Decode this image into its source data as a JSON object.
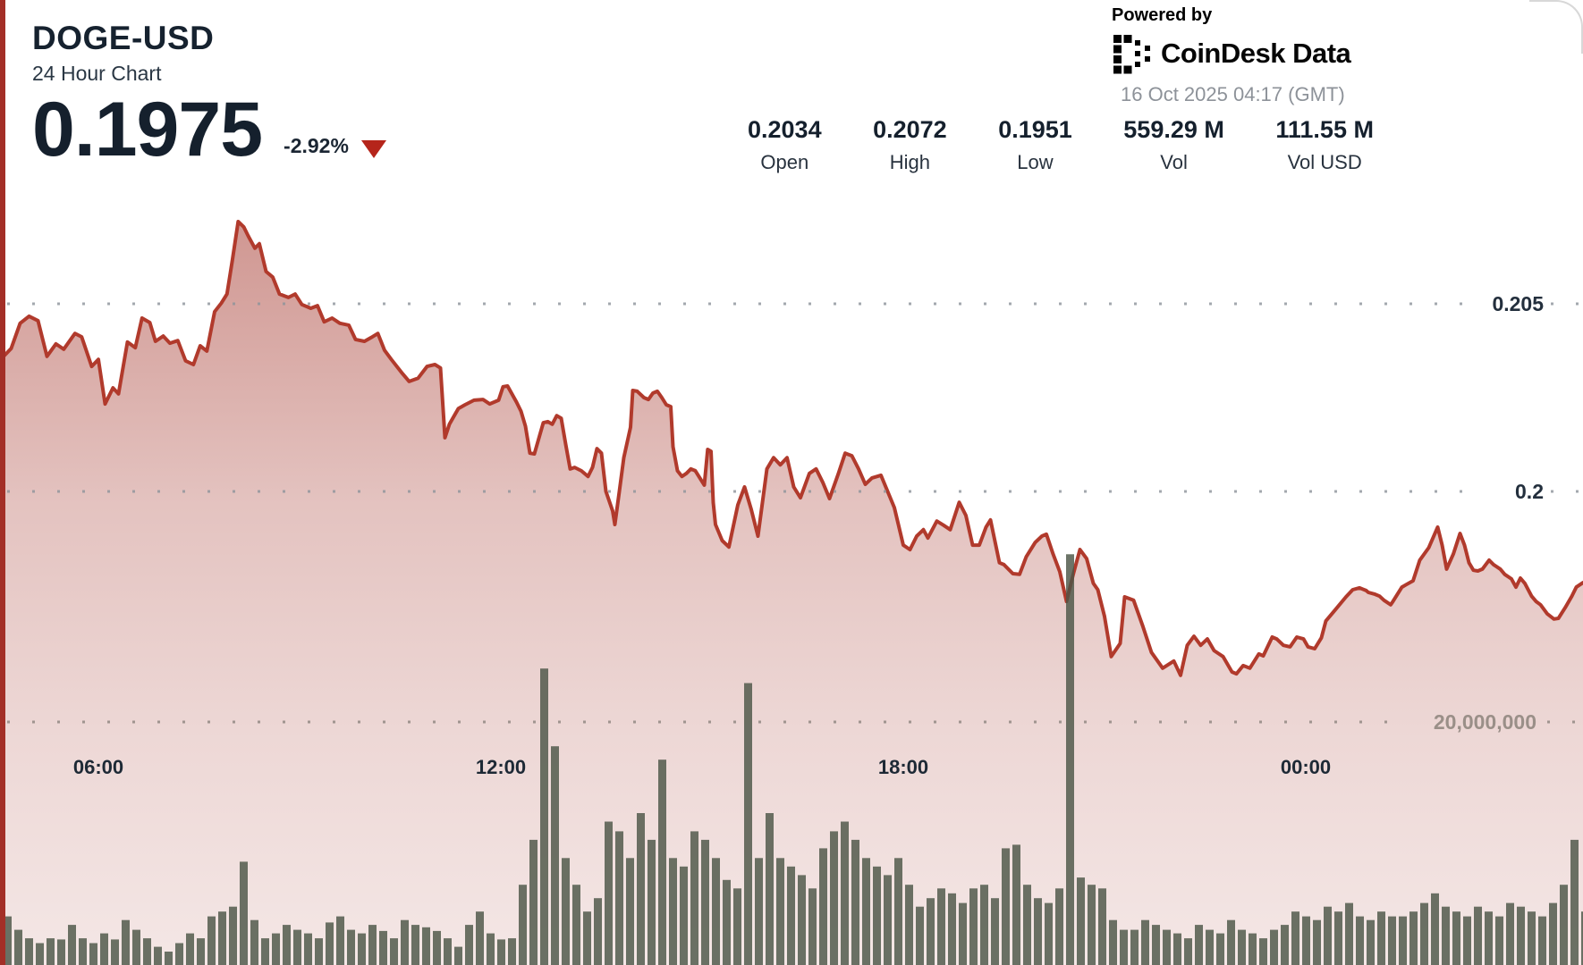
{
  "header": {
    "symbol": "DOGE-USD",
    "subtitle": "24 Hour Chart",
    "price": "0.1975",
    "change_percent": "-2.92%",
    "direction": "down"
  },
  "branding": {
    "powered_by": "Powered by",
    "logo_text": "CoinDesk Data",
    "timestamp": "16 Oct 2025 04:17 (GMT)"
  },
  "stats": {
    "columns": [
      {
        "value": "0.2034",
        "label": "Open"
      },
      {
        "value": "0.2072",
        "label": "High"
      },
      {
        "value": "0.1951",
        "label": "Low"
      },
      {
        "value": "559.29 M",
        "label": "Vol"
      },
      {
        "value": "111.55 M",
        "label": "Vol USD"
      }
    ]
  },
  "chart_data": {
    "type": "line+bar",
    "title": "DOGE-USD 24 Hour Chart",
    "grid": "dotted horizontal",
    "legend_position": "none",
    "x_axis": {
      "labels": [
        "06:00",
        "12:00",
        "18:00",
        "00:00"
      ],
      "label_minutes": [
        88,
        448,
        808,
        1168
      ],
      "minutes_span": [
        0,
        1416
      ],
      "start_clock": "04:32",
      "end_clock": "04:08"
    },
    "y_axis_price": {
      "gridlines": [
        {
          "value": 0.205,
          "label": "0.205"
        },
        {
          "value": 0.2,
          "label": "0.2"
        }
      ],
      "visible_range": [
        0.1938,
        0.2079
      ]
    },
    "y_axis_volume": {
      "gridline": {
        "value_millions": 20,
        "label": "20,000,000"
      }
    },
    "series": [
      {
        "name": "price",
        "type": "area-line",
        "points_min_price": [
          [
            0,
            0.2035
          ],
          [
            10,
            0.20381
          ],
          [
            18,
            0.20448
          ],
          [
            26,
            0.20467
          ],
          [
            34,
            0.20455
          ],
          [
            42,
            0.2036
          ],
          [
            50,
            0.20393
          ],
          [
            57,
            0.20379
          ],
          [
            67,
            0.20421
          ],
          [
            73,
            0.20412
          ],
          [
            82,
            0.20333
          ],
          [
            88,
            0.20352
          ],
          [
            94,
            0.20233
          ],
          [
            101,
            0.20276
          ],
          [
            106,
            0.2026
          ],
          [
            114,
            0.20398
          ],
          [
            121,
            0.20383
          ],
          [
            127,
            0.20462
          ],
          [
            134,
            0.2045
          ],
          [
            139,
            0.204
          ],
          [
            146,
            0.20414
          ],
          [
            152,
            0.20395
          ],
          [
            159,
            0.20402
          ],
          [
            166,
            0.20348
          ],
          [
            173,
            0.20338
          ],
          [
            179,
            0.20388
          ],
          [
            185,
            0.20374
          ],
          [
            192,
            0.20479
          ],
          [
            198,
            0.20502
          ],
          [
            203,
            0.20526
          ],
          [
            208,
            0.20619
          ],
          [
            213,
            0.20719
          ],
          [
            218,
            0.20705
          ],
          [
            222,
            0.20681
          ],
          [
            228,
            0.20648
          ],
          [
            232,
            0.2066
          ],
          [
            238,
            0.20586
          ],
          [
            244,
            0.20571
          ],
          [
            250,
            0.20526
          ],
          [
            258,
            0.20517
          ],
          [
            264,
            0.20526
          ],
          [
            270,
            0.20498
          ],
          [
            278,
            0.20488
          ],
          [
            284,
            0.20495
          ],
          [
            290,
            0.20452
          ],
          [
            297,
            0.20462
          ],
          [
            304,
            0.20448
          ],
          [
            312,
            0.20443
          ],
          [
            318,
            0.20405
          ],
          [
            326,
            0.204
          ],
          [
            332,
            0.2041
          ],
          [
            338,
            0.20421
          ],
          [
            344,
            0.20376
          ],
          [
            350,
            0.20352
          ],
          [
            360,
            0.20314
          ],
          [
            366,
            0.20293
          ],
          [
            374,
            0.20302
          ],
          [
            382,
            0.20333
          ],
          [
            389,
            0.20338
          ],
          [
            394,
            0.20329
          ],
          [
            398,
            0.20143
          ],
          [
            402,
            0.20179
          ],
          [
            410,
            0.20221
          ],
          [
            416,
            0.20231
          ],
          [
            424,
            0.20243
          ],
          [
            432,
            0.20245
          ],
          [
            438,
            0.20233
          ],
          [
            446,
            0.20243
          ],
          [
            450,
            0.20279
          ],
          [
            454,
            0.20281
          ],
          [
            462,
            0.20238
          ],
          [
            466,
            0.20214
          ],
          [
            470,
            0.20174
          ],
          [
            474,
            0.20102
          ],
          [
            478,
            0.201
          ],
          [
            486,
            0.20183
          ],
          [
            490,
            0.20186
          ],
          [
            494,
            0.20179
          ],
          [
            498,
            0.20202
          ],
          [
            502,
            0.20195
          ],
          [
            506,
            0.20126
          ],
          [
            510,
            0.2006
          ],
          [
            514,
            0.20064
          ],
          [
            520,
            0.20055
          ],
          [
            526,
            0.2004
          ],
          [
            530,
            0.20064
          ],
          [
            534,
            0.20114
          ],
          [
            538,
            0.20102
          ],
          [
            542,
            0.2
          ],
          [
            548,
            0.19948
          ],
          [
            550,
            0.19912
          ],
          [
            554,
            0.2
          ],
          [
            558,
            0.2009
          ],
          [
            564,
            0.20171
          ],
          [
            566,
            0.20269
          ],
          [
            570,
            0.20267
          ],
          [
            576,
            0.2025
          ],
          [
            580,
            0.20245
          ],
          [
            584,
            0.20262
          ],
          [
            588,
            0.20267
          ],
          [
            592,
            0.2025
          ],
          [
            596,
            0.20231
          ],
          [
            600,
            0.20226
          ],
          [
            602,
            0.20119
          ],
          [
            606,
            0.20055
          ],
          [
            610,
            0.2004
          ],
          [
            614,
            0.20048
          ],
          [
            618,
            0.2006
          ],
          [
            622,
            0.20055
          ],
          [
            626,
            0.20036
          ],
          [
            630,
            0.20017
          ],
          [
            633,
            0.20112
          ],
          [
            636,
            0.20107
          ],
          [
            638,
            0.1997
          ],
          [
            640,
            0.19912
          ],
          [
            646,
            0.19869
          ],
          [
            652,
            0.19852
          ],
          [
            660,
            0.19964
          ],
          [
            666,
            0.20012
          ],
          [
            672,
            0.19952
          ],
          [
            678,
            0.19881
          ],
          [
            686,
            0.2006
          ],
          [
            692,
            0.2009
          ],
          [
            698,
            0.20071
          ],
          [
            704,
            0.2009
          ],
          [
            710,
            0.20012
          ],
          [
            716,
            0.19983
          ],
          [
            724,
            0.20048
          ],
          [
            730,
            0.2006
          ],
          [
            736,
            0.20024
          ],
          [
            742,
            0.19981
          ],
          [
            750,
            0.20048
          ],
          [
            756,
            0.20102
          ],
          [
            762,
            0.20095
          ],
          [
            768,
            0.2006
          ],
          [
            774,
            0.20019
          ],
          [
            780,
            0.20036
          ],
          [
            788,
            0.20043
          ],
          [
            794,
            0.2
          ],
          [
            800,
            0.19957
          ],
          [
            808,
            0.19857
          ],
          [
            814,
            0.19845
          ],
          [
            820,
            0.19881
          ],
          [
            826,
            0.19898
          ],
          [
            830,
            0.19876
          ],
          [
            838,
            0.19921
          ],
          [
            844,
            0.1991
          ],
          [
            850,
            0.19898
          ],
          [
            858,
            0.19971
          ],
          [
            864,
            0.19936
          ],
          [
            870,
            0.19857
          ],
          [
            876,
            0.19857
          ],
          [
            882,
            0.19905
          ],
          [
            886,
            0.19924
          ],
          [
            894,
            0.1981
          ],
          [
            898,
            0.19805
          ],
          [
            906,
            0.19781
          ],
          [
            912,
            0.19779
          ],
          [
            918,
            0.19826
          ],
          [
            926,
            0.19864
          ],
          [
            932,
            0.19881
          ],
          [
            936,
            0.19886
          ],
          [
            942,
            0.19833
          ],
          [
            948,
            0.19786
          ],
          [
            954,
            0.19707
          ],
          [
            960,
            0.19779
          ],
          [
            966,
            0.19845
          ],
          [
            972,
            0.19821
          ],
          [
            978,
            0.19755
          ],
          [
            982,
            0.19738
          ],
          [
            988,
            0.19667
          ],
          [
            994,
            0.1956
          ],
          [
            1002,
            0.19595
          ],
          [
            1006,
            0.19719
          ],
          [
            1014,
            0.1971
          ],
          [
            1022,
            0.19643
          ],
          [
            1030,
            0.19571
          ],
          [
            1040,
            0.19529
          ],
          [
            1050,
            0.19548
          ],
          [
            1056,
            0.1951
          ],
          [
            1062,
            0.1959
          ],
          [
            1068,
            0.19614
          ],
          [
            1074,
            0.1959
          ],
          [
            1080,
            0.19607
          ],
          [
            1086,
            0.19576
          ],
          [
            1094,
            0.1956
          ],
          [
            1102,
            0.19519
          ],
          [
            1106,
            0.19514
          ],
          [
            1112,
            0.19536
          ],
          [
            1118,
            0.19529
          ],
          [
            1126,
            0.19567
          ],
          [
            1130,
            0.19562
          ],
          [
            1138,
            0.19612
          ],
          [
            1142,
            0.19607
          ],
          [
            1148,
            0.1959
          ],
          [
            1154,
            0.19586
          ],
          [
            1160,
            0.19612
          ],
          [
            1166,
            0.19607
          ],
          [
            1170,
            0.19586
          ],
          [
            1176,
            0.19581
          ],
          [
            1182,
            0.1961
          ],
          [
            1186,
            0.19655
          ],
          [
            1194,
            0.19683
          ],
          [
            1204,
            0.19719
          ],
          [
            1210,
            0.19738
          ],
          [
            1216,
            0.19743
          ],
          [
            1222,
            0.19736
          ],
          [
            1224,
            0.19731
          ],
          [
            1230,
            0.19726
          ],
          [
            1234,
            0.19721
          ],
          [
            1238,
            0.1971
          ],
          [
            1244,
            0.19698
          ],
          [
            1246,
            0.19707
          ],
          [
            1254,
            0.19745
          ],
          [
            1258,
            0.19752
          ],
          [
            1264,
            0.19762
          ],
          [
            1270,
            0.19817
          ],
          [
            1278,
            0.1985
          ],
          [
            1286,
            0.19905
          ],
          [
            1290,
            0.19857
          ],
          [
            1294,
            0.19793
          ],
          [
            1300,
            0.19833
          ],
          [
            1306,
            0.19888
          ],
          [
            1310,
            0.19857
          ],
          [
            1314,
            0.1981
          ],
          [
            1318,
            0.1979
          ],
          [
            1322,
            0.19788
          ],
          [
            1326,
            0.19793
          ],
          [
            1332,
            0.19817
          ],
          [
            1336,
            0.19805
          ],
          [
            1342,
            0.19793
          ],
          [
            1346,
            0.19779
          ],
          [
            1352,
            0.19767
          ],
          [
            1356,
            0.19745
          ],
          [
            1360,
            0.19769
          ],
          [
            1364,
            0.19755
          ],
          [
            1370,
            0.19721
          ],
          [
            1374,
            0.19707
          ],
          [
            1378,
            0.19698
          ],
          [
            1384,
            0.19674
          ],
          [
            1390,
            0.1966
          ],
          [
            1394,
            0.19662
          ],
          [
            1400,
            0.1969
          ],
          [
            1406,
            0.19721
          ],
          [
            1410,
            0.19745
          ],
          [
            1416,
            0.19757
          ]
        ]
      },
      {
        "name": "volume",
        "type": "bar",
        "unit": "millions",
        "first_bar_min": 3.2,
        "bar_pitch_min": 9.6,
        "bar_width_min": 7.2,
        "values_millions": [
          4.0,
          2.9,
          2.2,
          1.8,
          2.2,
          2.1,
          3.3,
          2.2,
          1.8,
          2.6,
          2.1,
          3.7,
          2.9,
          2.2,
          1.5,
          1.1,
          1.8,
          2.6,
          2.2,
          4.0,
          4.4,
          4.8,
          8.5,
          3.7,
          2.2,
          2.6,
          3.3,
          2.9,
          2.6,
          2.2,
          3.5,
          4.0,
          2.9,
          2.6,
          3.3,
          2.8,
          2.2,
          3.7,
          3.3,
          3.1,
          2.8,
          2.2,
          1.5,
          3.3,
          4.4,
          2.6,
          2.1,
          2.2,
          6.6,
          10.3,
          24.4,
          18.0,
          8.8,
          6.6,
          4.4,
          5.5,
          11.8,
          11.0,
          8.8,
          12.5,
          10.3,
          16.9,
          8.8,
          8.1,
          11.0,
          10.3,
          8.8,
          7.0,
          6.3,
          23.2,
          8.8,
          12.5,
          8.8,
          8.1,
          7.4,
          6.3,
          9.6,
          11.0,
          11.8,
          10.3,
          8.8,
          8.1,
          7.4,
          8.8,
          6.6,
          4.8,
          5.5,
          6.3,
          5.9,
          5.1,
          6.3,
          6.6,
          5.5,
          9.6,
          9.9,
          6.6,
          5.5,
          5.1,
          6.3,
          33.8,
          7.2,
          6.6,
          6.3,
          3.7,
          2.9,
          2.9,
          3.7,
          3.3,
          2.9,
          2.6,
          2.2,
          3.3,
          2.9,
          2.6,
          3.7,
          2.9,
          2.6,
          2.2,
          2.9,
          3.3,
          4.4,
          4.0,
          3.7,
          4.8,
          4.4,
          5.1,
          4.0,
          3.7,
          4.4,
          4.0,
          4.0,
          4.4,
          5.1,
          5.9,
          4.8,
          4.4,
          4.0,
          4.8,
          4.4,
          4.0,
          5.1,
          4.8,
          4.4,
          4.0,
          5.1,
          6.6,
          10.3,
          4.4
        ]
      }
    ],
    "colors": {
      "line": "#b13a2c",
      "fill_base": "#a4362c",
      "volume_bar": "#4c5547",
      "accent_strip": "#a32f27",
      "triangle": "#b5251b",
      "text_dark": "#1d2935",
      "price_grid_label": "#232f3d",
      "volume_grid_label": "#9a8f88",
      "grid_dot_price": "#8d939b",
      "grid_dot_volume": "#8d847e"
    }
  }
}
